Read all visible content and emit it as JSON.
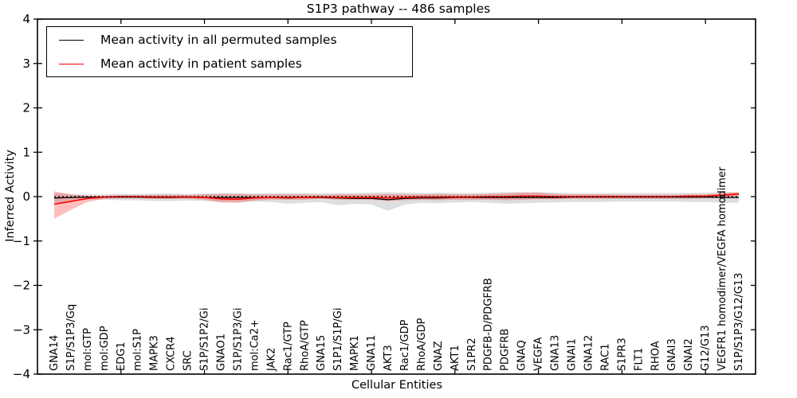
{
  "figure": {
    "title": "S1P3 pathway -- 486 samples",
    "xlabel": "Cellular Entities",
    "ylabel": "Inferred Activity"
  },
  "legend": {
    "items": [
      {
        "label": "Mean activity in all permuted samples",
        "color": "#000000"
      },
      {
        "label": "Mean activity in patient samples",
        "color": "#ff0000"
      }
    ]
  },
  "chart_data": {
    "type": "line",
    "title": "S1P3 pathway -- 486 samples",
    "xlabel": "Cellular Entities",
    "ylabel": "Inferred Activity",
    "ylim": [
      -4,
      4
    ],
    "yticks": [
      -4,
      -3,
      -2,
      -1,
      0,
      1,
      2,
      3,
      4
    ],
    "xlim": [
      -1,
      42
    ],
    "xticks": [
      4,
      9,
      14,
      19,
      24,
      29,
      34,
      39
    ],
    "grid": false,
    "legend_position": "upper left",
    "zero_line": {
      "y": 0,
      "style": "dashed",
      "color": "#000000"
    },
    "categories": [
      "GNA14",
      "S1P/S1P3/Gq",
      "mol:GTP",
      "mol:GDP",
      "EDG1",
      "mol:S1P",
      "MAPK3",
      "CXCR4",
      "SRC",
      "S1P/S1P2/Gi",
      "GNAO1",
      "S1P/S1P3/Gi",
      "mol:Ca2+",
      "JAK2",
      "Rac1/GTP",
      "RhoA/GTP",
      "GNA15",
      "S1P1/S1P/Gi",
      "MAPK1",
      "GNA11",
      "AKT3",
      "Rac1/GDP",
      "RhoA/GDP",
      "GNAZ",
      "AKT1",
      "S1PR2",
      "PDGFB-D/PDGFRB",
      "PDGFRB",
      "GNAQ",
      "VEGFA",
      "GNA13",
      "GNAI1",
      "GNA12",
      "RAC1",
      "S1PR3",
      "FLT1",
      "RHOA",
      "GNAI3",
      "GNAI2",
      "G12/G13",
      "VEGFR1 homodimer/VEGFA homodimer",
      "S1P/S1P3/G12/G13"
    ],
    "series": [
      {
        "name": "Mean activity in all permuted samples",
        "color": "#000000",
        "line_width": 1.3,
        "band_color": "#000000",
        "band_opacity": 0.13,
        "values": [
          -0.03,
          -0.02,
          -0.01,
          -0.01,
          -0.01,
          -0.01,
          -0.02,
          -0.02,
          -0.01,
          -0.02,
          -0.02,
          -0.02,
          -0.02,
          -0.02,
          -0.03,
          -0.02,
          -0.02,
          -0.03,
          -0.04,
          -0.04,
          -0.07,
          -0.04,
          -0.03,
          -0.03,
          -0.02,
          -0.02,
          -0.02,
          -0.02,
          -0.02,
          -0.02,
          -0.02,
          -0.01,
          -0.01,
          -0.01,
          -0.01,
          -0.01,
          -0.01,
          -0.01,
          -0.01,
          -0.01,
          -0.02,
          -0.02
        ],
        "band_upper": [
          0.08,
          0.06,
          0.05,
          0.05,
          0.06,
          0.06,
          0.07,
          0.07,
          0.06,
          0.07,
          0.08,
          0.08,
          0.07,
          0.08,
          0.08,
          0.08,
          0.07,
          0.08,
          0.08,
          0.09,
          0.1,
          0.09,
          0.08,
          0.09,
          0.08,
          0.08,
          0.09,
          0.1,
          0.1,
          0.1,
          0.09,
          0.08,
          0.08,
          0.08,
          0.08,
          0.08,
          0.08,
          0.08,
          0.08,
          0.09,
          0.1,
          0.1
        ],
        "band_lower": [
          -0.15,
          -0.1,
          -0.07,
          -0.07,
          -0.08,
          -0.08,
          -0.1,
          -0.1,
          -0.09,
          -0.1,
          -0.12,
          -0.12,
          -0.11,
          -0.12,
          -0.16,
          -0.14,
          -0.12,
          -0.2,
          -0.16,
          -0.18,
          -0.32,
          -0.18,
          -0.14,
          -0.15,
          -0.13,
          -0.12,
          -0.14,
          -0.16,
          -0.15,
          -0.14,
          -0.13,
          -0.12,
          -0.12,
          -0.12,
          -0.11,
          -0.11,
          -0.11,
          -0.11,
          -0.12,
          -0.12,
          -0.14,
          -0.14
        ]
      },
      {
        "name": "Mean activity in patient samples",
        "color": "#ff0000",
        "line_width": 1.6,
        "band_color": "#ff0000",
        "band_opacity": 0.25,
        "values": [
          -0.17,
          -0.11,
          -0.04,
          -0.01,
          0.0,
          0.0,
          -0.01,
          -0.01,
          -0.01,
          -0.02,
          -0.05,
          -0.06,
          -0.03,
          -0.02,
          -0.02,
          -0.02,
          -0.01,
          -0.02,
          -0.02,
          -0.02,
          -0.03,
          -0.02,
          -0.01,
          -0.01,
          -0.01,
          -0.01,
          0.0,
          0.0,
          0.01,
          0.01,
          0.0,
          0.0,
          0.0,
          0.0,
          0.0,
          0.0,
          0.0,
          0.0,
          0.01,
          0.01,
          0.03,
          0.06
        ],
        "band_upper": [
          0.12,
          0.05,
          0.02,
          0.02,
          0.03,
          0.03,
          0.04,
          0.04,
          0.04,
          0.05,
          0.06,
          0.06,
          0.05,
          0.05,
          0.05,
          0.05,
          0.04,
          0.05,
          0.05,
          0.05,
          0.06,
          0.05,
          0.05,
          0.06,
          0.05,
          0.05,
          0.06,
          0.07,
          0.09,
          0.09,
          0.06,
          0.05,
          0.05,
          0.05,
          0.04,
          0.04,
          0.04,
          0.04,
          0.05,
          0.05,
          0.08,
          0.1
        ],
        "band_lower": [
          -0.5,
          -0.3,
          -0.12,
          -0.05,
          -0.04,
          -0.04,
          -0.05,
          -0.05,
          -0.05,
          -0.07,
          -0.13,
          -0.14,
          -0.09,
          -0.07,
          -0.07,
          -0.07,
          -0.05,
          -0.07,
          -0.07,
          -0.07,
          -0.1,
          -0.08,
          -0.07,
          -0.08,
          -0.07,
          -0.07,
          -0.07,
          -0.08,
          -0.07,
          -0.06,
          -0.06,
          -0.05,
          -0.05,
          -0.05,
          -0.05,
          -0.05,
          -0.05,
          -0.05,
          -0.05,
          -0.04,
          -0.02,
          0.01
        ]
      }
    ]
  }
}
